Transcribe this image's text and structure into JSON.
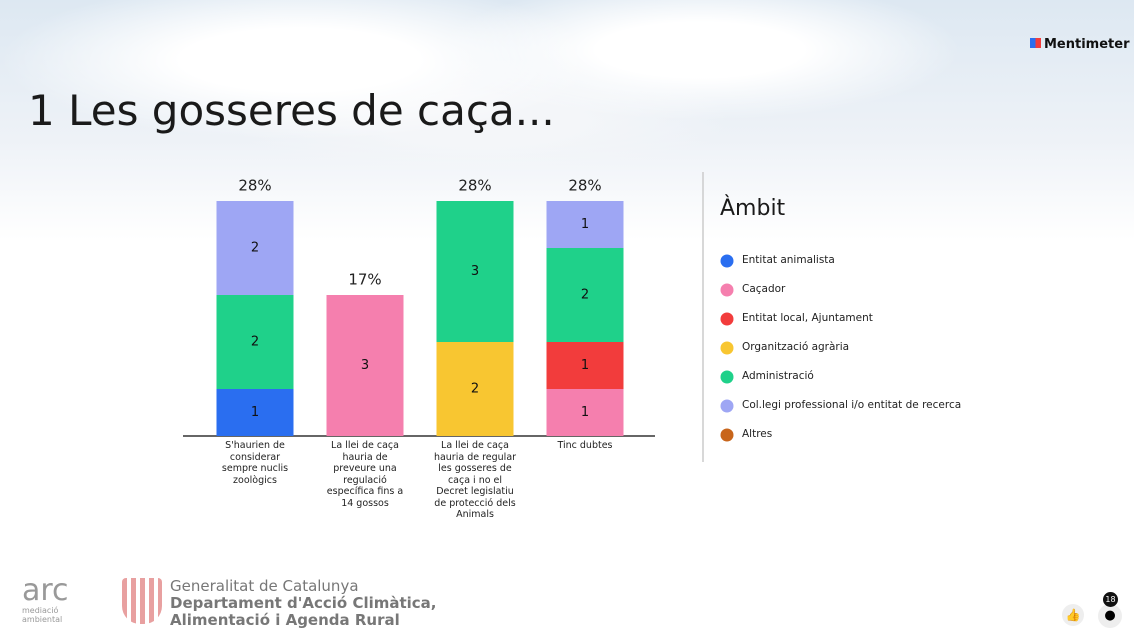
{
  "brand": "Mentimeter",
  "footer": {
    "arc": "arc",
    "arc_sub": "mediació ambiental",
    "gov_line1": "Generalitat de Catalunya",
    "gov_line2": "Departament d'Acció Climàtica,",
    "gov_line3": "Alimentació i Agenda Rural"
  },
  "participants": "18",
  "chart_data": {
    "type": "stacked_bar",
    "title": "1 Les gosseres de caça...",
    "legend_title": "Àmbit",
    "legend": "right",
    "categories": [
      "S'haurien de considerar sempre nuclis zoològics",
      "La llei de caça hauria de preveure una regulació específica fins a 14 gossos",
      "La llei de caça hauria de regular les gosseres de caça i no el Decret legislatiu de protecció dels Animals",
      "Tinc dubtes"
    ],
    "totals": [
      {
        "value": 28,
        "label": "28%"
      },
      {
        "value": 17,
        "label": "17%"
      },
      {
        "value": 28,
        "label": "28%"
      },
      {
        "value": 28,
        "label": "28%"
      }
    ],
    "series": [
      {
        "name": "Entitat animalista",
        "color": "#2a6ef0",
        "values": [
          1,
          0,
          0,
          0
        ]
      },
      {
        "name": "Caçador",
        "color": "#f57fae",
        "values": [
          0,
          3,
          0,
          1
        ]
      },
      {
        "name": "Entitat local, Ajuntament",
        "color": "#f23c3c",
        "values": [
          0,
          0,
          0,
          1
        ]
      },
      {
        "name": "Organització agrària",
        "color": "#f8c631",
        "values": [
          0,
          0,
          2,
          0
        ]
      },
      {
        "name": "Administració",
        "color": "#1fd18a",
        "values": [
          2,
          0,
          3,
          2
        ]
      },
      {
        "name": "Col.legi professional i/o entitat de recerca",
        "color": "#9ea6f4",
        "values": [
          2,
          0,
          0,
          1
        ]
      },
      {
        "name": "Altres",
        "color": "#c8651b",
        "values": [
          0,
          0,
          0,
          0
        ]
      }
    ]
  }
}
